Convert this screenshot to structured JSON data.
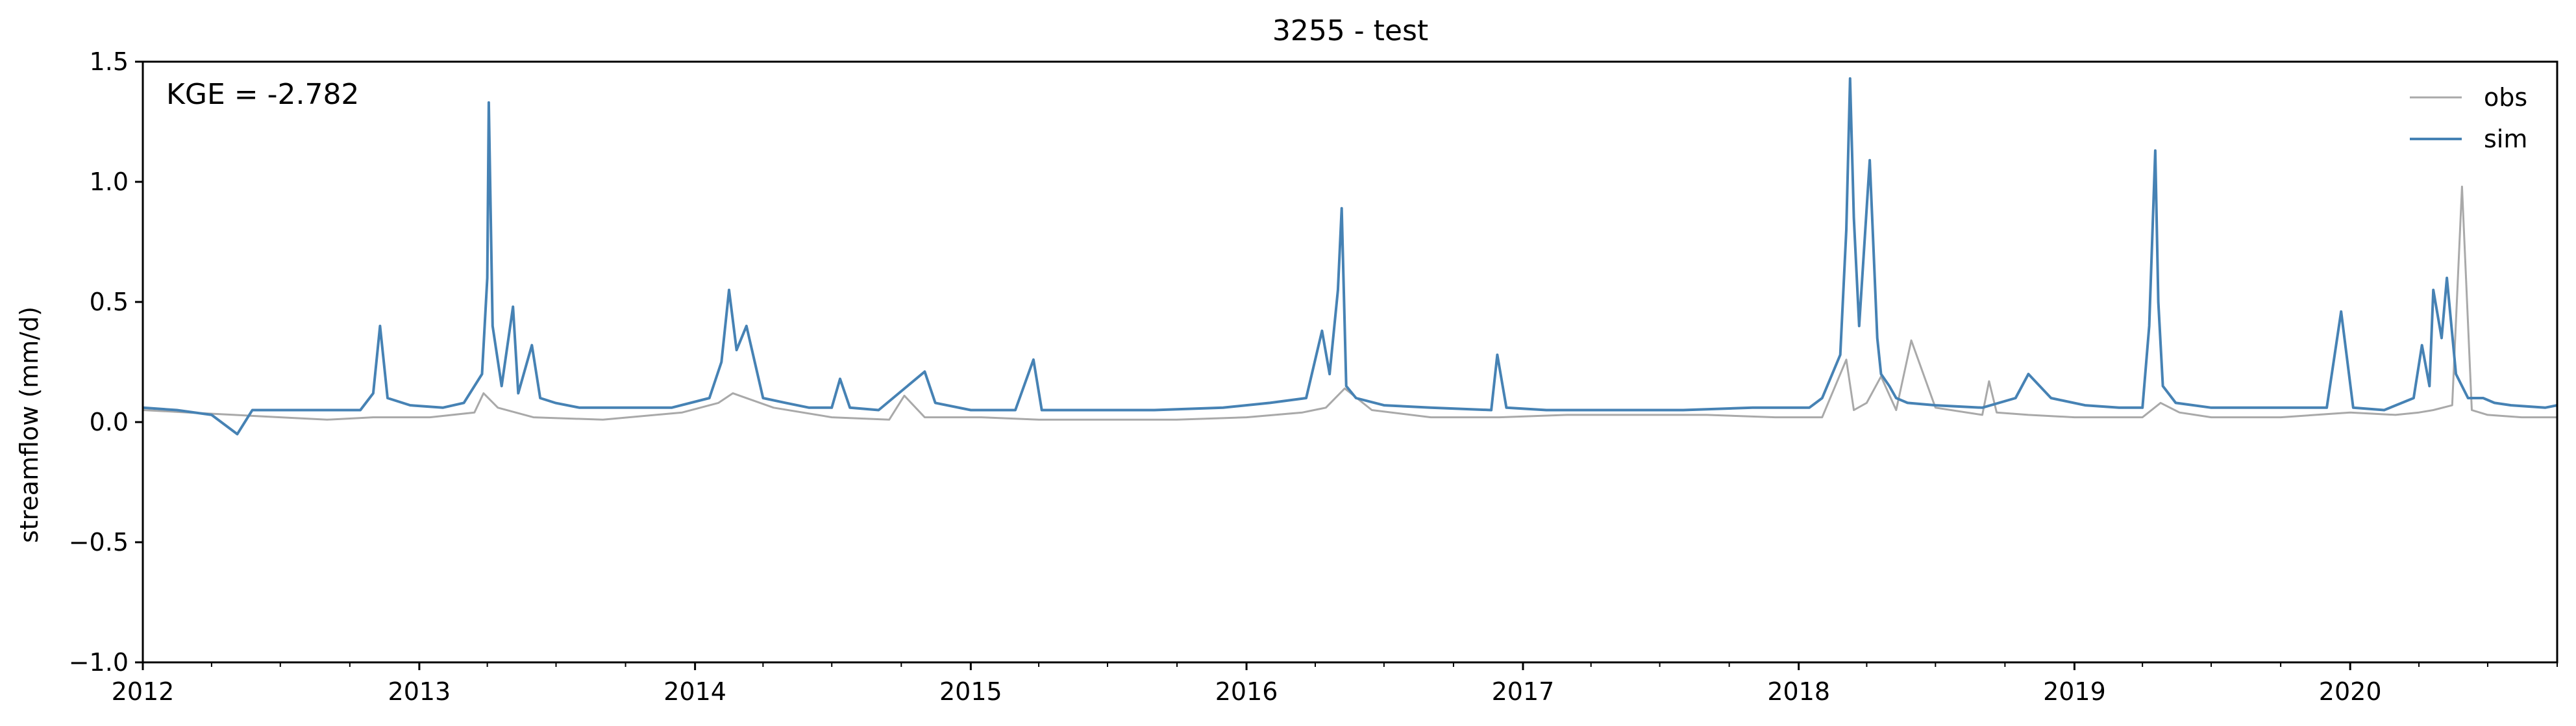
{
  "chart_data": {
    "type": "line",
    "title": "3255 - test",
    "ylabel": "streamflow (mm/d)",
    "xlabel": "",
    "annotation": "KGE = -2.782",
    "ylim": [
      -1.0,
      1.5
    ],
    "xlim": [
      "2012-01-01",
      "2020-10-01"
    ],
    "yticks": [
      -1.0,
      -0.5,
      0.0,
      0.5,
      1.0,
      1.5
    ],
    "ytick_labels": [
      "−1.0",
      "−0.5",
      "0.0",
      "0.5",
      "1.0",
      "1.5"
    ],
    "xticks": [
      "2012-01-01",
      "2013-01-01",
      "2014-01-01",
      "2015-01-01",
      "2016-01-01",
      "2017-01-01",
      "2018-01-01",
      "2019-01-01",
      "2020-01-01"
    ],
    "xtick_labels": [
      "2012",
      "2013",
      "2014",
      "2015",
      "2016",
      "2017",
      "2018",
      "2019",
      "2020"
    ],
    "grid": false,
    "legend_position": "top-right",
    "series": [
      {
        "name": "obs",
        "color": "#a9a9a9",
        "x": [
          "2012-01-01",
          "2012-03-01",
          "2012-05-01",
          "2012-07-01",
          "2012-09-01",
          "2012-11-01",
          "2013-01-15",
          "2013-03-15",
          "2013-03-27",
          "2013-04-15",
          "2013-06-01",
          "2013-09-01",
          "2013-12-15",
          "2014-02-01",
          "2014-02-20",
          "2014-04-15",
          "2014-07-01",
          "2014-09-15",
          "2014-10-05",
          "2014-11-01",
          "2015-01-15",
          "2015-04-01",
          "2015-07-01",
          "2015-10-01",
          "2016-01-01",
          "2016-03-15",
          "2016-04-15",
          "2016-05-10",
          "2016-06-15",
          "2016-09-01",
          "2016-12-01",
          "2017-03-01",
          "2017-06-01",
          "2017-09-01",
          "2017-12-01",
          "2018-02-01",
          "2018-03-05",
          "2018-03-15",
          "2018-04-01",
          "2018-04-20",
          "2018-05-10",
          "2018-05-30",
          "2018-07-01",
          "2018-09-01",
          "2018-09-10",
          "2018-09-20",
          "2018-11-01",
          "2019-01-01",
          "2019-04-01",
          "2019-04-25",
          "2019-05-20",
          "2019-07-01",
          "2019-10-01",
          "2020-01-01",
          "2020-03-01",
          "2020-04-01",
          "2020-04-20",
          "2020-05-15",
          "2020-05-28",
          "2020-06-10",
          "2020-07-01",
          "2020-08-15",
          "2020-10-01"
        ],
        "values": [
          0.05,
          0.04,
          0.03,
          0.02,
          0.01,
          0.02,
          0.02,
          0.04,
          0.12,
          0.06,
          0.02,
          0.01,
          0.04,
          0.08,
          0.12,
          0.06,
          0.02,
          0.01,
          0.11,
          0.02,
          0.02,
          0.01,
          0.01,
          0.01,
          0.02,
          0.04,
          0.06,
          0.14,
          0.05,
          0.02,
          0.02,
          0.03,
          0.03,
          0.03,
          0.02,
          0.02,
          0.26,
          0.05,
          0.08,
          0.19,
          0.05,
          0.34,
          0.06,
          0.03,
          0.17,
          0.04,
          0.03,
          0.02,
          0.02,
          0.08,
          0.04,
          0.02,
          0.02,
          0.04,
          0.03,
          0.04,
          0.05,
          0.07,
          0.98,
          0.05,
          0.03,
          0.02,
          0.02
        ]
      },
      {
        "name": "sim",
        "color": "#4682b4",
        "x": [
          "2012-01-01",
          "2012-02-15",
          "2012-04-01",
          "2012-05-05",
          "2012-05-25",
          "2012-06-25",
          "2012-08-15",
          "2012-10-15",
          "2012-11-01",
          "2012-11-10",
          "2012-11-20",
          "2012-12-20",
          "2013-02-01",
          "2013-03-01",
          "2013-03-25",
          "2013-04-01",
          "2013-04-03",
          "2013-04-08",
          "2013-04-20",
          "2013-05-05",
          "2013-05-12",
          "2013-05-30",
          "2013-06-10",
          "2013-06-30",
          "2013-08-01",
          "2013-10-01",
          "2013-12-01",
          "2014-01-20",
          "2014-02-05",
          "2014-02-15",
          "2014-02-25",
          "2014-03-10",
          "2014-04-01",
          "2014-05-01",
          "2014-06-01",
          "2014-07-01",
          "2014-07-12",
          "2014-07-25",
          "2014-09-01",
          "2014-11-01",
          "2014-11-15",
          "2015-01-01",
          "2015-03-01",
          "2015-03-25",
          "2015-04-05",
          "2015-06-01",
          "2015-09-01",
          "2015-12-01",
          "2016-02-01",
          "2016-03-20",
          "2016-04-10",
          "2016-04-20",
          "2016-05-01",
          "2016-05-06",
          "2016-05-12",
          "2016-05-25",
          "2016-07-01",
          "2016-09-01",
          "2016-11-20",
          "2016-11-28",
          "2016-12-10",
          "2017-02-01",
          "2017-05-01",
          "2017-08-01",
          "2017-11-01",
          "2018-01-15",
          "2018-02-01",
          "2018-02-25",
          "2018-03-05",
          "2018-03-10",
          "2018-03-15",
          "2018-03-22",
          "2018-04-05",
          "2018-04-15",
          "2018-04-20",
          "2018-05-01",
          "2018-05-10",
          "2018-05-25",
          "2018-07-01",
          "2018-09-01",
          "2018-10-15",
          "2018-11-01",
          "2018-12-01",
          "2019-01-15",
          "2019-03-01",
          "2019-04-01",
          "2019-04-10",
          "2019-04-18",
          "2019-04-22",
          "2019-04-28",
          "2019-05-15",
          "2019-07-01",
          "2019-09-01",
          "2019-12-01",
          "2019-12-20",
          "2020-01-05",
          "2020-02-15",
          "2020-03-25",
          "2020-04-05",
          "2020-04-15",
          "2020-04-20",
          "2020-05-01",
          "2020-05-08",
          "2020-05-20",
          "2020-06-05",
          "2020-06-25",
          "2020-07-10",
          "2020-08-01",
          "2020-09-15",
          "2020-10-01"
        ],
        "values": [
          0.06,
          0.05,
          0.03,
          -0.05,
          0.05,
          0.05,
          0.05,
          0.05,
          0.12,
          0.4,
          0.1,
          0.07,
          0.06,
          0.08,
          0.2,
          0.6,
          1.33,
          0.4,
          0.15,
          0.48,
          0.12,
          0.32,
          0.1,
          0.08,
          0.06,
          0.06,
          0.06,
          0.1,
          0.25,
          0.55,
          0.3,
          0.4,
          0.1,
          0.08,
          0.06,
          0.06,
          0.18,
          0.06,
          0.05,
          0.21,
          0.08,
          0.05,
          0.05,
          0.26,
          0.05,
          0.05,
          0.05,
          0.06,
          0.08,
          0.1,
          0.38,
          0.2,
          0.55,
          0.89,
          0.15,
          0.1,
          0.07,
          0.06,
          0.05,
          0.28,
          0.06,
          0.05,
          0.05,
          0.05,
          0.06,
          0.06,
          0.1,
          0.28,
          0.8,
          1.43,
          0.85,
          0.4,
          1.09,
          0.35,
          0.2,
          0.15,
          0.1,
          0.08,
          0.07,
          0.06,
          0.1,
          0.2,
          0.1,
          0.07,
          0.06,
          0.06,
          0.4,
          1.13,
          0.5,
          0.15,
          0.08,
          0.06,
          0.06,
          0.06,
          0.46,
          0.06,
          0.05,
          0.1,
          0.32,
          0.15,
          0.55,
          0.35,
          0.6,
          0.2,
          0.1,
          0.1,
          0.08,
          0.07,
          0.06,
          0.07
        ]
      }
    ]
  }
}
